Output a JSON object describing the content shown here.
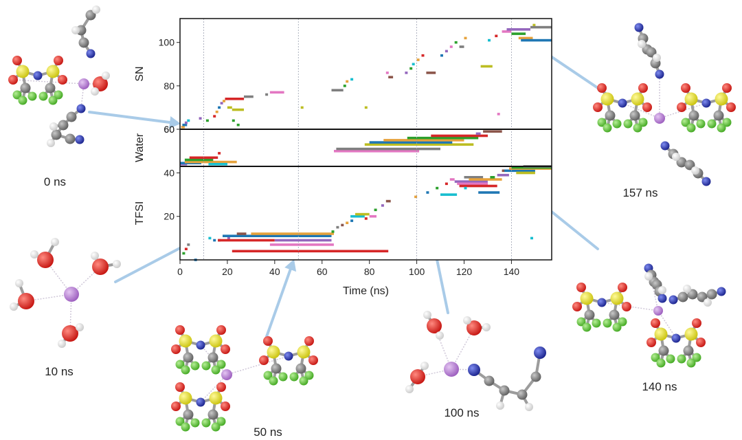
{
  "chart_data": {
    "type": "scatter",
    "xlabel": "Time (ns)",
    "xlim": [
      0,
      157
    ],
    "x_ticks": [
      "0",
      "20",
      "40",
      "60",
      "80",
      "100",
      "120",
      "140"
    ],
    "vertical_markers": [
      10,
      50,
      100,
      140,
      157
    ],
    "panels": [
      {
        "name": "SN",
        "ylabel": "SN",
        "ylim": [
          60,
          111
        ],
        "y_ticks": [
          "60",
          "80",
          "100"
        ],
        "segments": [
          {
            "x0": 0.5,
            "x1": 2,
            "y": 61,
            "color": "#e6a23c"
          },
          {
            "x0": 1,
            "x1": 3,
            "y": 62,
            "color": "#1f77b4"
          },
          {
            "x0": 2,
            "x1": 3,
            "y": 63,
            "color": "#9467bd"
          },
          {
            "x0": 3,
            "x1": 4,
            "y": 64,
            "color": "#17becf"
          },
          {
            "x0": 8,
            "x1": 9,
            "y": 65,
            "color": "#9467bd"
          },
          {
            "x0": 11,
            "x1": 12,
            "y": 64,
            "color": "#2ca02c"
          },
          {
            "x0": 14,
            "x1": 15,
            "y": 66,
            "color": "#d62728"
          },
          {
            "x0": 15,
            "x1": 16,
            "y": 68,
            "color": "#e6a23c"
          },
          {
            "x0": 16,
            "x1": 17,
            "y": 70,
            "color": "#1f77b4"
          },
          {
            "x0": 17,
            "x1": 18,
            "y": 72,
            "color": "#9467bd"
          },
          {
            "x0": 18,
            "x1": 19,
            "y": 73,
            "color": "#e6a23c"
          },
          {
            "x0": 19,
            "x1": 27,
            "y": 74,
            "color": "#d62728"
          },
          {
            "x0": 27,
            "x1": 31,
            "y": 75,
            "color": "#7f7f7f"
          },
          {
            "x0": 20,
            "x1": 22,
            "y": 70,
            "color": "#bcbd22"
          },
          {
            "x0": 22,
            "x1": 27,
            "y": 69,
            "color": "#bcbd22"
          },
          {
            "x0": 22,
            "x1": 23,
            "y": 64,
            "color": "#2ca02c"
          },
          {
            "x0": 24,
            "x1": 25,
            "y": 62,
            "color": "#2ca02c"
          },
          {
            "x0": 36,
            "x1": 37,
            "y": 76,
            "color": "#7f7f7f"
          },
          {
            "x0": 38,
            "x1": 44,
            "y": 77,
            "color": "#e377c2"
          },
          {
            "x0": 51,
            "x1": 52,
            "y": 70,
            "color": "#bcbd22"
          },
          {
            "x0": 64,
            "x1": 69,
            "y": 78,
            "color": "#7f7f7f"
          },
          {
            "x0": 69,
            "x1": 70,
            "y": 80,
            "color": "#2ca02c"
          },
          {
            "x0": 70,
            "x1": 71,
            "y": 82,
            "color": "#e6a23c"
          },
          {
            "x0": 72,
            "x1": 73,
            "y": 83,
            "color": "#17becf"
          },
          {
            "x0": 78,
            "x1": 79,
            "y": 70,
            "color": "#bcbd22"
          },
          {
            "x0": 87,
            "x1": 88,
            "y": 86,
            "color": "#e377c2"
          },
          {
            "x0": 88,
            "x1": 90,
            "y": 84,
            "color": "#8c564b"
          },
          {
            "x0": 95,
            "x1": 96,
            "y": 86,
            "color": "#9467bd"
          },
          {
            "x0": 97,
            "x1": 98,
            "y": 88,
            "color": "#2ca02c"
          },
          {
            "x0": 98,
            "x1": 99,
            "y": 90,
            "color": "#17becf"
          },
          {
            "x0": 100,
            "x1": 101,
            "y": 92,
            "color": "#e6a23c"
          },
          {
            "x0": 102,
            "x1": 103,
            "y": 94,
            "color": "#d62728"
          },
          {
            "x0": 104,
            "x1": 108,
            "y": 86,
            "color": "#8c564b"
          },
          {
            "x0": 110,
            "x1": 111,
            "y": 94,
            "color": "#1f77b4"
          },
          {
            "x0": 112,
            "x1": 113,
            "y": 96,
            "color": "#9467bd"
          },
          {
            "x0": 114,
            "x1": 115,
            "y": 98,
            "color": "#e377c2"
          },
          {
            "x0": 116,
            "x1": 117,
            "y": 100,
            "color": "#2ca02c"
          },
          {
            "x0": 118,
            "x1": 120,
            "y": 98,
            "color": "#7f7f7f"
          },
          {
            "x0": 120,
            "x1": 121,
            "y": 102,
            "color": "#e6a23c"
          },
          {
            "x0": 127,
            "x1": 132,
            "y": 89,
            "color": "#bcbd22"
          },
          {
            "x0": 130,
            "x1": 131,
            "y": 101,
            "color": "#17becf"
          },
          {
            "x0": 133,
            "x1": 134,
            "y": 103,
            "color": "#d62728"
          },
          {
            "x0": 134,
            "x1": 135,
            "y": 67,
            "color": "#e377c2"
          },
          {
            "x0": 136,
            "x1": 140,
            "y": 105,
            "color": "#e377c2"
          },
          {
            "x0": 138,
            "x1": 148,
            "y": 106,
            "color": "#9467bd"
          },
          {
            "x0": 140,
            "x1": 146,
            "y": 104,
            "color": "#2ca02c"
          },
          {
            "x0": 143,
            "x1": 149,
            "y": 102,
            "color": "#e6a23c"
          },
          {
            "x0": 149,
            "x1": 150,
            "y": 108,
            "color": "#bcbd22"
          },
          {
            "x0": 148,
            "x1": 157,
            "y": 107,
            "color": "#7f7f7f"
          },
          {
            "x0": 144,
            "x1": 157,
            "y": 101,
            "color": "#1f77b4"
          }
        ]
      },
      {
        "name": "Water",
        "ylabel": "Water",
        "ylim": [
          43,
          60
        ],
        "y_ticks": [
          "60"
        ],
        "segments": [
          {
            "x0": 0,
            "x1": 3,
            "y": 44,
            "color": "#9467bd"
          },
          {
            "x0": 0,
            "x1": 9,
            "y": 44.5,
            "color": "#1f77b4"
          },
          {
            "x0": 2,
            "x1": 24,
            "y": 45,
            "color": "#e6a23c"
          },
          {
            "x0": 2,
            "x1": 14,
            "y": 46,
            "color": "#2ca02c"
          },
          {
            "x0": 4,
            "x1": 16,
            "y": 47,
            "color": "#d62728"
          },
          {
            "x0": 12,
            "x1": 20,
            "y": 44,
            "color": "#17becf"
          },
          {
            "x0": 16,
            "x1": 17,
            "y": 49,
            "color": "#d62728"
          },
          {
            "x0": 65,
            "x1": 101,
            "y": 50,
            "color": "#e377c2"
          },
          {
            "x0": 66,
            "x1": 110,
            "y": 51,
            "color": "#7f7f7f"
          },
          {
            "x0": 78,
            "x1": 124,
            "y": 53,
            "color": "#bcbd22"
          },
          {
            "x0": 80,
            "x1": 115,
            "y": 54,
            "color": "#1f77b4"
          },
          {
            "x0": 86,
            "x1": 120,
            "y": 55,
            "color": "#e6a23c"
          },
          {
            "x0": 96,
            "x1": 126,
            "y": 56,
            "color": "#2ca02c"
          },
          {
            "x0": 106,
            "x1": 130,
            "y": 57,
            "color": "#d62728"
          },
          {
            "x0": 125,
            "x1": 127,
            "y": 58,
            "color": "#9467bd"
          },
          {
            "x0": 128,
            "x1": 136,
            "y": 59,
            "color": "#8c564b"
          }
        ]
      },
      {
        "name": "TFSI",
        "ylabel": "TFSI",
        "ylim": [
          0,
          43
        ],
        "y_ticks": [
          "20",
          "40"
        ],
        "segments": [
          {
            "x0": 1,
            "x1": 2,
            "y": 3,
            "color": "#2ca02c"
          },
          {
            "x0": 2,
            "x1": 3,
            "y": 5,
            "color": "#d62728"
          },
          {
            "x0": 3,
            "x1": 4,
            "y": 7,
            "color": "#7f7f7f"
          },
          {
            "x0": 6,
            "x1": 7,
            "y": 0,
            "color": "#1f77b4"
          },
          {
            "x0": 12,
            "x1": 13,
            "y": 10,
            "color": "#17becf"
          },
          {
            "x0": 14,
            "x1": 15,
            "y": 9,
            "color": "#1f77b4"
          },
          {
            "x0": 16,
            "x1": 17,
            "y": 9,
            "color": "#8c564b"
          },
          {
            "x0": 20,
            "x1": 21,
            "y": 10,
            "color": "#9467bd"
          },
          {
            "x0": 18,
            "x1": 64,
            "y": 11,
            "color": "#1f77b4"
          },
          {
            "x0": 24,
            "x1": 28,
            "y": 12,
            "color": "#8c564b"
          },
          {
            "x0": 30,
            "x1": 65,
            "y": 12,
            "color": "#e6a23c"
          },
          {
            "x0": 16,
            "x1": 40,
            "y": 9,
            "color": "#d62728"
          },
          {
            "x0": 40,
            "x1": 64,
            "y": 9,
            "color": "#9467bd"
          },
          {
            "x0": 38,
            "x1": 65,
            "y": 7,
            "color": "#e377c2"
          },
          {
            "x0": 22,
            "x1": 88,
            "y": 4,
            "color": "#d62728"
          },
          {
            "x0": 64,
            "x1": 65,
            "y": 13,
            "color": "#2ca02c"
          },
          {
            "x0": 66,
            "x1": 67,
            "y": 15,
            "color": "#7f7f7f"
          },
          {
            "x0": 68,
            "x1": 69,
            "y": 16,
            "color": "#8c564b"
          },
          {
            "x0": 70,
            "x1": 71,
            "y": 17,
            "color": "#e6a23c"
          },
          {
            "x0": 72,
            "x1": 73,
            "y": 18,
            "color": "#1f77b4"
          },
          {
            "x0": 72,
            "x1": 78,
            "y": 20,
            "color": "#17becf"
          },
          {
            "x0": 74,
            "x1": 80,
            "y": 21,
            "color": "#bcbd22"
          },
          {
            "x0": 78,
            "x1": 79,
            "y": 19,
            "color": "#d62728"
          },
          {
            "x0": 80,
            "x1": 83,
            "y": 20,
            "color": "#e377c2"
          },
          {
            "x0": 82,
            "x1": 83,
            "y": 23,
            "color": "#2ca02c"
          },
          {
            "x0": 85,
            "x1": 86,
            "y": 25,
            "color": "#9467bd"
          },
          {
            "x0": 87,
            "x1": 89,
            "y": 27,
            "color": "#8c564b"
          },
          {
            "x0": 99,
            "x1": 100,
            "y": 29,
            "color": "#e6a23c"
          },
          {
            "x0": 104,
            "x1": 105,
            "y": 31,
            "color": "#1f77b4"
          },
          {
            "x0": 108,
            "x1": 109,
            "y": 33,
            "color": "#2ca02c"
          },
          {
            "x0": 110,
            "x1": 117,
            "y": 30,
            "color": "#17becf"
          },
          {
            "x0": 112,
            "x1": 113,
            "y": 35,
            "color": "#d62728"
          },
          {
            "x0": 114,
            "x1": 116,
            "y": 37,
            "color": "#e377c2"
          },
          {
            "x0": 116,
            "x1": 130,
            "y": 36,
            "color": "#9467bd"
          },
          {
            "x0": 117,
            "x1": 130,
            "y": 35,
            "color": "#e377c2"
          },
          {
            "x0": 118,
            "x1": 134,
            "y": 34,
            "color": "#d62728"
          },
          {
            "x0": 120,
            "x1": 128,
            "y": 38,
            "color": "#7f7f7f"
          },
          {
            "x0": 122,
            "x1": 136,
            "y": 37,
            "color": "#e6a23c"
          },
          {
            "x0": 120,
            "x1": 121,
            "y": 33,
            "color": "#17becf"
          },
          {
            "x0": 126,
            "x1": 135,
            "y": 31,
            "color": "#1f77b4"
          },
          {
            "x0": 131,
            "x1": 133,
            "y": 38,
            "color": "#2ca02c"
          },
          {
            "x0": 134,
            "x1": 139,
            "y": 39,
            "color": "#9467bd"
          },
          {
            "x0": 136,
            "x1": 137,
            "y": 41,
            "color": "#8c564b"
          },
          {
            "x0": 137,
            "x1": 150,
            "y": 41,
            "color": "#1f77b4"
          },
          {
            "x0": 139,
            "x1": 157,
            "y": 42,
            "color": "#e6a23c"
          },
          {
            "x0": 140,
            "x1": 157,
            "y": 42.5,
            "color": "#2ca02c"
          },
          {
            "x0": 142,
            "x1": 150,
            "y": 40,
            "color": "#bcbd22"
          },
          {
            "x0": 145,
            "x1": 157,
            "y": 43,
            "color": "#7f7f7f"
          },
          {
            "x0": 148,
            "x1": 149,
            "y": 10,
            "color": "#17becf"
          }
        ]
      }
    ]
  },
  "snapshots": [
    {
      "label": "0 ns",
      "time": 0
    },
    {
      "label": "10 ns",
      "time": 10
    },
    {
      "label": "50 ns",
      "time": 50
    },
    {
      "label": "100 ns",
      "time": 100
    },
    {
      "label": "140 ns",
      "time": 140
    },
    {
      "label": "157 ns",
      "time": 157
    }
  ],
  "atom_colors": {
    "lithium": "#b277cf",
    "oxygen": "#e0201b",
    "hydrogen": "#f2f2f2",
    "sulfur": "#e8e01e",
    "fluorine": "#64c83c",
    "nitrogen": "#2530a8",
    "carbon": "#7d7d7d"
  },
  "arrow_color": "#a9cbe8"
}
